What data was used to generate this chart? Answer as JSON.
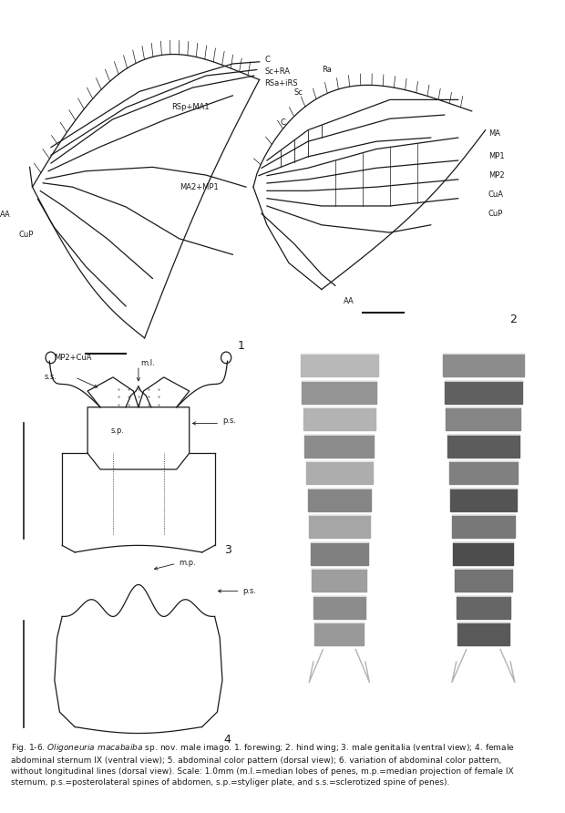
{
  "figure_width": 6.2,
  "figure_height": 8.92,
  "dpi": 100,
  "bg_color": "#ffffff",
  "text_color": "#1a1a1a",
  "line_color": "#1a1a1a",
  "photo_bg": "#909090",
  "caption_line1": "Fig. 1-6. ",
  "caption_species": "Oligoneuria macabaiba",
  "caption_rest": " sp. nov. male imago. 1. forewing; 2. hind wing; 3. male genitalia (ventral view); 4. female",
  "caption_line2": "abdominal sternum IX (ventral view); 5. abdominal color pattern (dorsal view); 6. variation of abdominal color pattern,",
  "caption_line3": "without longitudinal lines (dorsal view). Scale: 1.0mm (m.l.=median lobes of penes, m.p.=median projection of female IX",
  "caption_line4": "sternum, p.s.=posterolateral spines of abdomen, s.p.=styliger plate, and s.s.=sclerotized spine of penes).",
  "seg_colors_5": [
    0.72,
    0.58,
    0.72,
    0.6,
    0.72,
    0.58,
    0.68,
    0.55,
    0.65,
    0.6,
    0.62
  ],
  "seg_colors_6": [
    0.55,
    0.42,
    0.55,
    0.4,
    0.5,
    0.38,
    0.48,
    0.35,
    0.45,
    0.32,
    0.4
  ]
}
